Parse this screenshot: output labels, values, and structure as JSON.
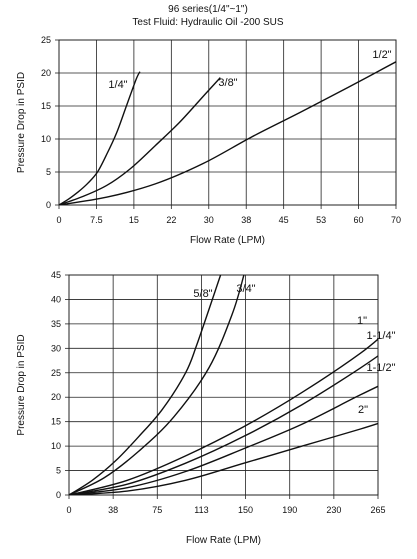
{
  "header": {
    "line1": "96 series(1/4\"~1\")",
    "line2": "Test Fluid: Hydraulic Oil -200 SUS"
  },
  "chart_data": [
    {
      "type": "line",
      "xlabel": "Flow Rate (LPM)",
      "ylabel": "Pressure Drop in PSID",
      "xticks": [
        "0",
        "7.5",
        "15",
        "22",
        "30",
        "38",
        "45",
        "53",
        "60",
        "70"
      ],
      "yticks": [
        "0",
        "5",
        "10",
        "15",
        "20",
        "25"
      ],
      "xlim": [
        0,
        70
      ],
      "ylim": [
        0,
        25
      ],
      "grid": true,
      "series": [
        {
          "name": "1/4\"",
          "x": [
            0,
            2,
            4,
            6,
            8,
            10,
            12,
            14,
            16,
            16.8
          ],
          "y": [
            0,
            0.9,
            2.0,
            3.3,
            5.0,
            7.8,
            11.0,
            15.0,
            19.0,
            20.2
          ]
        },
        {
          "name": "3/8\"",
          "x": [
            0,
            5,
            10,
            15,
            20,
            25,
            30,
            33.5
          ],
          "y": [
            0,
            1.3,
            3.0,
            5.6,
            9.0,
            12.5,
            16.5,
            19.3
          ]
        },
        {
          "name": "1/2\"",
          "x": [
            0,
            10,
            20,
            30,
            40,
            50,
            60,
            70
          ],
          "y": [
            0,
            1.2,
            3.2,
            6.3,
            10.3,
            14.0,
            17.8,
            21.7
          ]
        }
      ]
    },
    {
      "type": "line",
      "xlabel": "Flow Rate (LPM)",
      "ylabel": "Pressure Drop in PSID",
      "xticks": [
        "0",
        "38",
        "75",
        "113",
        "150",
        "190",
        "230",
        "265"
      ],
      "yticks": [
        "0",
        "5",
        "10",
        "15",
        "20",
        "25",
        "30",
        "35",
        "40",
        "45"
      ],
      "xlim": [
        0,
        265
      ],
      "ylim": [
        0,
        45
      ],
      "grid": true,
      "series": [
        {
          "name": "5/8\"",
          "x": [
            0,
            20,
            40,
            60,
            80,
            100,
            110,
            130
          ],
          "y": [
            0,
            3.0,
            7.0,
            12.0,
            17.5,
            25.0,
            31.0,
            45.0
          ]
        },
        {
          "name": "3/4\"",
          "x": [
            0,
            30,
            60,
            90,
            120,
            140,
            150
          ],
          "y": [
            0,
            3.5,
            9.0,
            16.0,
            26.0,
            37.0,
            45.0
          ]
        },
        {
          "name": "1\"",
          "x": [
            0,
            50,
            100,
            150,
            200,
            250,
            275
          ],
          "y": [
            0,
            3.0,
            8.0,
            14.0,
            21.0,
            29.0,
            34.0
          ]
        },
        {
          "name": "1-1/4\"",
          "x": [
            0,
            50,
            100,
            150,
            200,
            250,
            280
          ],
          "y": [
            0,
            2.2,
            6.5,
            12.0,
            18.5,
            26.0,
            31.0
          ]
        },
        {
          "name": "1-1/2\"",
          "x": [
            0,
            50,
            100,
            150,
            200,
            250,
            285
          ],
          "y": [
            0,
            1.5,
            4.8,
            9.5,
            14.5,
            20.5,
            24.5
          ]
        },
        {
          "name": "2\"",
          "x": [
            0,
            50,
            100,
            150,
            200,
            250,
            280
          ],
          "y": [
            0,
            0.8,
            3.0,
            6.5,
            10.0,
            13.5,
            15.8
          ]
        }
      ]
    }
  ]
}
